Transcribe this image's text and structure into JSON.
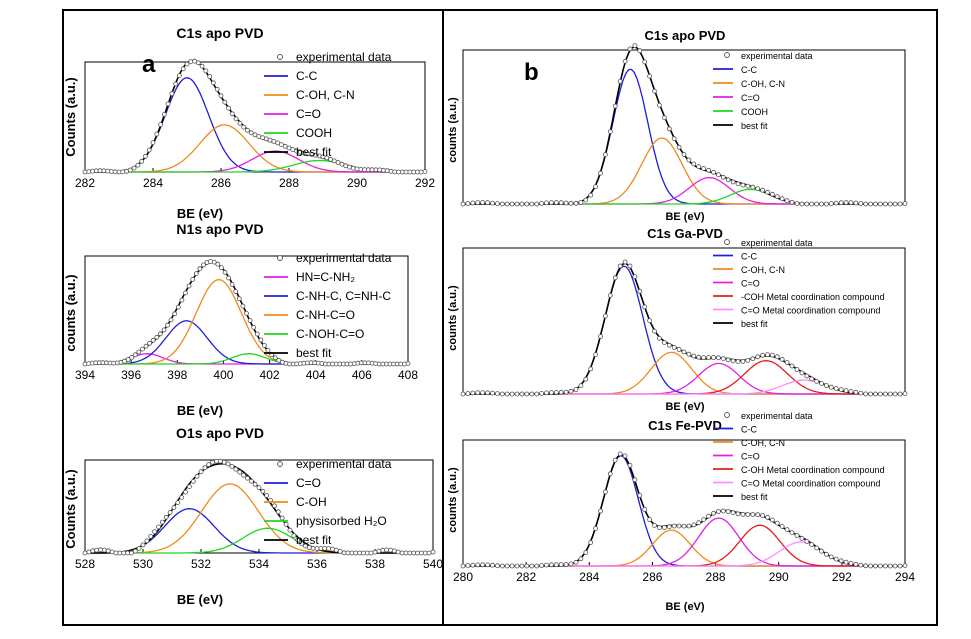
{
  "panel_labels": {
    "a": "a",
    "b": "b"
  },
  "chart_data": [
    {
      "id": "a1",
      "type": "line",
      "title": "C1s apo PVD",
      "xlabel": "BE (eV)",
      "ylabel": "Counts (a.u.)",
      "xlim": [
        282,
        292
      ],
      "ylim": [
        0,
        1.05
      ],
      "xticks": [
        282,
        284,
        286,
        288,
        290,
        292
      ],
      "tick_labels": [
        "282",
        "284",
        "286",
        "288",
        "290",
        "292"
      ],
      "noise": 0.012,
      "legend": [
        {
          "label": "experimental data",
          "kind": "marker"
        },
        {
          "label": "C-C",
          "color": "#1f1fd6"
        },
        {
          "label": "C-OH, C-N",
          "color": "#f08a1c"
        },
        {
          "label": "C=O",
          "color": "#e61ee6"
        },
        {
          "label": "COOH",
          "color": "#22d622"
        },
        {
          "label": "best fit",
          "color": "#000000"
        }
      ],
      "series": [
        {
          "name": "C-C",
          "color": "#1f1fd6",
          "center": 285.0,
          "amplitude": 0.9,
          "fwhm": 1.5
        },
        {
          "name": "C-OH, C-N",
          "color": "#f08a1c",
          "center": 286.1,
          "amplitude": 0.45,
          "fwhm": 1.7
        },
        {
          "name": "C=O",
          "color": "#e61ee6",
          "center": 287.6,
          "amplitude": 0.2,
          "fwhm": 1.6
        },
        {
          "name": "COOH",
          "color": "#22d622",
          "center": 288.9,
          "amplitude": 0.11,
          "fwhm": 1.8
        }
      ]
    },
    {
      "id": "a2",
      "type": "line",
      "title": "N1s apo PVD",
      "xlabel": "BE (eV)",
      "ylabel": "counts (a.u.)",
      "xlim": [
        394,
        408
      ],
      "ylim": [
        0,
        1.05
      ],
      "xticks": [
        394,
        396,
        398,
        400,
        402,
        404,
        406,
        408
      ],
      "tick_labels": [
        "394",
        "396",
        "398",
        "400",
        "402",
        "404",
        "406",
        "408"
      ],
      "noise": 0.012,
      "legend": [
        {
          "label": "experimental data",
          "kind": "marker"
        },
        {
          "label": "HN=C-NH₂",
          "color": "#e61ee6"
        },
        {
          "label": "C-NH-C, C=NH-C",
          "color": "#1f1fd6"
        },
        {
          "label": "C-NH-C=O",
          "color": "#f08a1c"
        },
        {
          "label": "C-NOH-C=O",
          "color": "#22d622"
        },
        {
          "label": "best fit",
          "color": "#000000"
        }
      ],
      "series": [
        {
          "name": "HN=C-NH₂",
          "color": "#e61ee6",
          "center": 396.7,
          "amplitude": 0.1,
          "fwhm": 1.6
        },
        {
          "name": "C-NH-C, C=NH-C",
          "color": "#1f1fd6",
          "center": 398.4,
          "amplitude": 0.42,
          "fwhm": 2.1
        },
        {
          "name": "C-NH-C=O",
          "color": "#f08a1c",
          "center": 399.8,
          "amplitude": 0.82,
          "fwhm": 2.3
        },
        {
          "name": "C-NOH-C=O",
          "color": "#22d622",
          "center": 401.1,
          "amplitude": 0.1,
          "fwhm": 1.7
        }
      ]
    },
    {
      "id": "a3",
      "type": "line",
      "title": "O1s apo PVD",
      "xlabel": "BE (eV)",
      "ylabel": "Counts (a.u.)",
      "xlim": [
        528,
        540
      ],
      "ylim": [
        0,
        1.05
      ],
      "xticks": [
        528,
        530,
        532,
        534,
        536,
        538,
        540
      ],
      "tick_labels": [
        "528",
        "530",
        "532",
        "534",
        "536",
        "538",
        "540"
      ],
      "noise": 0.035,
      "legend": [
        {
          "label": "experimental data",
          "kind": "marker"
        },
        {
          "label": "C=O",
          "color": "#1f1fd6"
        },
        {
          "label": "C-OH",
          "color": "#f08a1c"
        },
        {
          "label": "physisorbed H₂O",
          "color": "#22d622"
        },
        {
          "label": "best fit",
          "color": "#000000"
        }
      ],
      "series": [
        {
          "name": "C=O",
          "color": "#1f1fd6",
          "center": 531.6,
          "amplitude": 0.5,
          "fwhm": 2.0
        },
        {
          "name": "C-OH",
          "color": "#f08a1c",
          "center": 533.0,
          "amplitude": 0.78,
          "fwhm": 2.3
        },
        {
          "name": "physisorbed H₂O",
          "color": "#22d622",
          "center": 534.3,
          "amplitude": 0.28,
          "fwhm": 2.0
        }
      ]
    },
    {
      "id": "b1",
      "type": "line",
      "title": "C1s apo PVD",
      "xlabel": "BE (eV)",
      "ylabel": "counts (a.u.)",
      "xlim": [
        280,
        294
      ],
      "ylim": [
        0,
        1.05
      ],
      "xticks": [],
      "tick_labels": [],
      "noise": 0.01,
      "legend": [
        {
          "label": "experimental data",
          "kind": "marker"
        },
        {
          "label": "C-C",
          "color": "#1f1fd6"
        },
        {
          "label": "C-OH, C-N",
          "color": "#f08a1c"
        },
        {
          "label": "C=O",
          "color": "#e61ee6"
        },
        {
          "label": "COOH",
          "color": "#22d622"
        },
        {
          "label": "best fit",
          "color": "#000000"
        }
      ],
      "series": [
        {
          "name": "C-C",
          "color": "#1f1fd6",
          "center": 285.3,
          "amplitude": 0.92,
          "fwhm": 1.3
        },
        {
          "name": "C-OH, C-N",
          "color": "#f08a1c",
          "center": 286.3,
          "amplitude": 0.45,
          "fwhm": 1.5
        },
        {
          "name": "C=O",
          "color": "#e61ee6",
          "center": 287.8,
          "amplitude": 0.18,
          "fwhm": 1.5
        },
        {
          "name": "COOH",
          "color": "#22d622",
          "center": 289.1,
          "amplitude": 0.1,
          "fwhm": 1.5
        }
      ]
    },
    {
      "id": "b2",
      "type": "line",
      "title": "C1s Ga-PVD",
      "xlabel": "BE (eV)",
      "ylabel": "counts (a.u.)",
      "xlim": [
        280,
        294
      ],
      "ylim": [
        0,
        1.05
      ],
      "xticks": [],
      "tick_labels": [],
      "noise": 0.01,
      "legend": [
        {
          "label": "experimental data",
          "kind": "marker"
        },
        {
          "label": "C-C",
          "color": "#1f1fd6"
        },
        {
          "label": "C-OH, C-N",
          "color": "#f08a1c"
        },
        {
          "label": "C=O",
          "color": "#e61ee6"
        },
        {
          "label": "-COH Metal coordination compound",
          "color": "#e61e1e"
        },
        {
          "label": "C=O Metal coordination compound",
          "color": "#ff8cff"
        },
        {
          "label": "best fit",
          "color": "#000000"
        }
      ],
      "series": [
        {
          "name": "C-C",
          "color": "#1f1fd6",
          "center": 285.1,
          "amplitude": 0.92,
          "fwhm": 1.4
        },
        {
          "name": "C-OH, C-N",
          "color": "#f08a1c",
          "center": 286.6,
          "amplitude": 0.3,
          "fwhm": 1.5
        },
        {
          "name": "C=O",
          "color": "#e61ee6",
          "center": 288.1,
          "amplitude": 0.22,
          "fwhm": 1.5
        },
        {
          "name": "-COH Metal coordination compound",
          "color": "#e61e1e",
          "center": 289.6,
          "amplitude": 0.24,
          "fwhm": 1.6
        },
        {
          "name": "C=O Metal coordination compound",
          "color": "#ff8cff",
          "center": 290.8,
          "amplitude": 0.1,
          "fwhm": 1.6
        }
      ]
    },
    {
      "id": "b3",
      "type": "line",
      "title": "C1s Fe-PVD",
      "xlabel": "BE (eV)",
      "ylabel": "counts (a.u.)",
      "xlim": [
        280,
        294
      ],
      "ylim": [
        0,
        1.05
      ],
      "xticks": [
        280,
        282,
        284,
        286,
        288,
        290,
        292,
        294
      ],
      "tick_labels": [
        "280",
        "282",
        "284",
        "286",
        "288",
        "290",
        "292",
        "294"
      ],
      "noise": 0.01,
      "legend": [
        {
          "label": "experimental data",
          "kind": "marker"
        },
        {
          "label": "C-C",
          "color": "#1f1fd6"
        },
        {
          "label": "C-OH, C-N",
          "color": "#f08a1c"
        },
        {
          "label": "C=O",
          "color": "#e61ee6"
        },
        {
          "label": "C-OH Metal coordination compound",
          "color": "#e61e1e"
        },
        {
          "label": "C=O Metal coordination compound",
          "color": "#ff8cff"
        },
        {
          "label": "best fit",
          "color": "#000000"
        }
      ],
      "series": [
        {
          "name": "C-C",
          "color": "#1f1fd6",
          "center": 285.0,
          "amplitude": 0.92,
          "fwhm": 1.3
        },
        {
          "name": "C-OH, C-N",
          "color": "#f08a1c",
          "center": 286.6,
          "amplitude": 0.3,
          "fwhm": 1.4
        },
        {
          "name": "C=O",
          "color": "#e61ee6",
          "center": 288.1,
          "amplitude": 0.4,
          "fwhm": 1.5
        },
        {
          "name": "C-OH Metal coordination compound",
          "color": "#e61e1e",
          "center": 289.4,
          "amplitude": 0.34,
          "fwhm": 1.5
        },
        {
          "name": "C=O Metal coordination compound",
          "color": "#ff8cff",
          "center": 290.7,
          "amplitude": 0.2,
          "fwhm": 1.6
        }
      ]
    }
  ]
}
